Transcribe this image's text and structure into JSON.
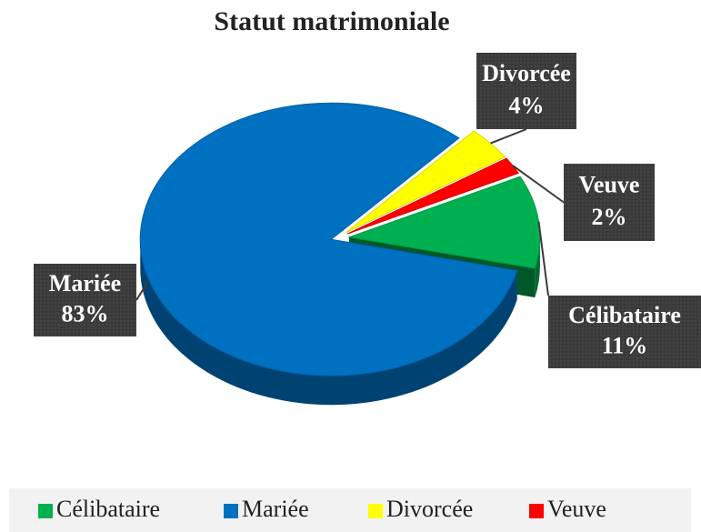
{
  "chart_data": {
    "type": "pie",
    "title": "Statut matrimoniale",
    "categories": [
      "Célibataire",
      "Mariée",
      "Divorcée",
      "Veuve"
    ],
    "values": [
      11,
      83,
      4,
      2
    ],
    "value_labels": [
      "11%",
      "83%",
      "4%",
      "2%"
    ],
    "colors": [
      "#00b050",
      "#0070c0",
      "#ffff00",
      "#ff0000"
    ],
    "legend": "bottom"
  }
}
